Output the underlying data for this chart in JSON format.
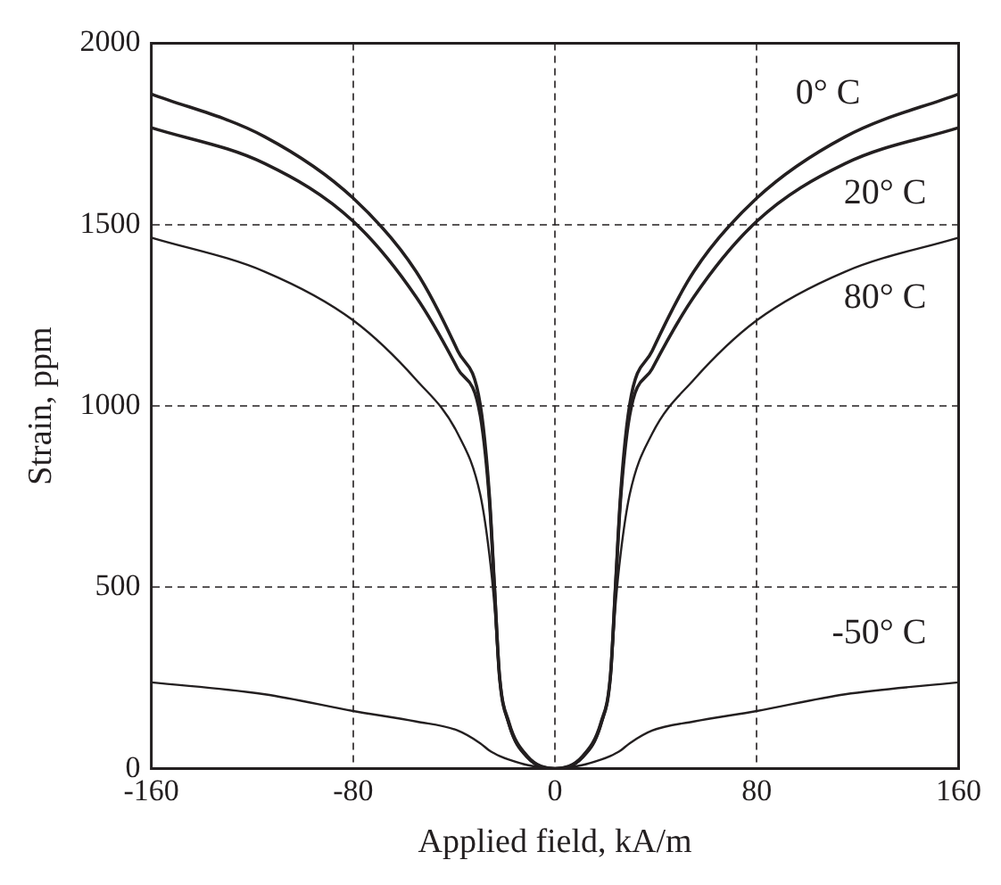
{
  "chart_data": {
    "type": "line",
    "xlabel": "Applied field, kA/m",
    "ylabel": "Strain, ppm",
    "x": [
      -160,
      -115,
      -80,
      -55,
      -38.5,
      -29.6,
      -26,
      -24,
      -22,
      -18.3,
      -11,
      0,
      11,
      18.3,
      22,
      24,
      26,
      29.6,
      38.5,
      55,
      80,
      115,
      160
    ],
    "series": [
      {
        "name": "0° C",
        "color": "#231f20",
        "values": [
          1860,
          1742,
          1573,
          1370,
          1151,
          1003,
          755,
          506,
          258,
          129,
          35,
          0,
          35,
          129,
          258,
          506,
          755,
          1003,
          1151,
          1370,
          1573,
          1742,
          1860
        ]
      },
      {
        "name": "20° C",
        "color": "#231f20",
        "values": [
          1767,
          1668,
          1509,
          1300,
          1102,
          973,
          740,
          500,
          255,
          125,
          33,
          0,
          33,
          125,
          255,
          500,
          740,
          973,
          1102,
          1300,
          1509,
          1668,
          1767
        ]
      },
      {
        "name": "80° C",
        "color": "#231f20",
        "values": [
          1464,
          1370,
          1236,
          1072,
          923,
          755,
          590,
          450,
          250,
          120,
          30,
          0,
          30,
          120,
          250,
          450,
          590,
          755,
          923,
          1072,
          1236,
          1370,
          1464
        ]
      },
      {
        "name": "-50° C",
        "color": "#231f20",
        "values": [
          238,
          205,
          159,
          130,
          105,
          70,
          50,
          42,
          35,
          25,
          10,
          0,
          10,
          25,
          35,
          42,
          50,
          70,
          105,
          130,
          159,
          205,
          238
        ]
      }
    ],
    "xlim": [
      -160,
      160
    ],
    "xticks": [
      -160,
      -80,
      0,
      80,
      160
    ],
    "ylim": [
      0,
      2000
    ],
    "yticks": [
      0,
      500,
      1000,
      1500,
      2000
    ],
    "grid": true,
    "legend": false,
    "marker": "none",
    "line_style": "solid"
  }
}
